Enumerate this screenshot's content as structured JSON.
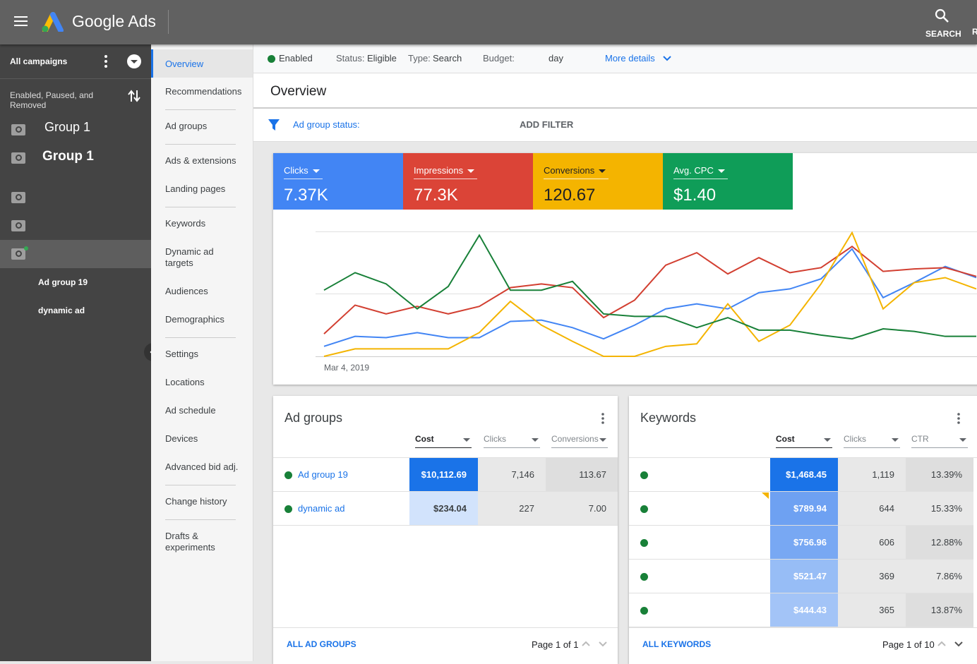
{
  "header": {
    "product": "Google Ads",
    "search": "SEARCH",
    "right_cut": "R"
  },
  "sidebar": {
    "scope": "All campaigns",
    "filter": "Enabled, Paused, and Removed",
    "campaigns": [
      "Group 1",
      "Group 1"
    ],
    "ad_groups": [
      "Ad group 19",
      "dynamic ad"
    ]
  },
  "nav": {
    "items": [
      "Overview",
      "Recommendations",
      "Ad groups",
      "Ads & extensions",
      "Landing pages",
      "Keywords",
      "Dynamic ad targets",
      "Audiences",
      "Demographics",
      "Settings",
      "Locations",
      "Ad schedule",
      "Devices",
      "Advanced bid adj.",
      "Change history",
      "Drafts & experiments"
    ]
  },
  "status_bar": {
    "state": "Enabled",
    "status_label": "Status:",
    "status": "Eligible",
    "type_label": "Type:",
    "type": "Search",
    "budget_label": "Budget:",
    "budget": "day",
    "more": "More details"
  },
  "page_title": "Overview",
  "filter": {
    "label": "Ad group status:",
    "action": "ADD FILTER"
  },
  "metrics": [
    {
      "name": "Clicks",
      "value": "7.37K",
      "color": "#4285f4"
    },
    {
      "name": "Impressions",
      "value": "77.3K",
      "color": "#db4437"
    },
    {
      "name": "Conversions",
      "value": "120.67",
      "color": "#f4b400"
    },
    {
      "name": "Avg. CPC",
      "value": "$1.40",
      "color": "#0f9d58"
    }
  ],
  "chart_data": {
    "type": "line",
    "categories": [
      "Mar 4, 2019",
      null,
      null,
      null,
      null,
      null,
      null,
      null,
      null,
      null,
      null,
      null,
      null,
      null,
      null,
      null,
      null,
      null,
      null,
      null,
      null,
      null
    ],
    "ylim": [
      0,
      100
    ],
    "series": [
      {
        "color": "#4285f4",
        "values": [
          8,
          16,
          15,
          19,
          15,
          15,
          28,
          29,
          23,
          14,
          25,
          38,
          42,
          38,
          51,
          54,
          62,
          86,
          47,
          59,
          72,
          63
        ]
      },
      {
        "color": "#d23f31",
        "values": [
          18,
          41,
          34,
          40,
          34,
          40,
          55,
          58,
          55,
          31,
          45,
          73,
          83,
          66,
          79,
          67,
          71,
          88,
          68,
          70,
          71,
          64
        ]
      },
      {
        "color": "#f4b400",
        "values": [
          0,
          6,
          6,
          6,
          6,
          19,
          44,
          25,
          12,
          0,
          0,
          8,
          10,
          42,
          12,
          25,
          58,
          99,
          38,
          59,
          63,
          54
        ]
      },
      {
        "color": "#188038",
        "values": [
          53,
          67,
          58,
          38,
          56,
          97,
          53,
          53,
          60,
          34,
          32,
          32,
          23,
          31,
          21,
          21,
          17,
          14,
          22,
          20,
          16,
          16
        ]
      }
    ]
  },
  "ad_groups_card": {
    "title": "Ad groups",
    "columns": [
      "Cost",
      "Clicks",
      "Conversions"
    ],
    "rows": [
      [
        "Ad group 19",
        "$10,112.69",
        "7,146",
        "113.67"
      ],
      [
        "dynamic ad",
        "$234.04",
        "227",
        "7.00"
      ]
    ],
    "cost_colors": [
      "#1a73e8",
      "#d2e3fc"
    ],
    "footer_link": "ALL AD GROUPS",
    "pagination": "Page 1 of 1"
  },
  "keywords_card": {
    "title": "Keywords",
    "columns": [
      "Cost",
      "Clicks",
      "CTR"
    ],
    "rows": [
      [
        "$1,468.45",
        "1,119",
        "13.39%"
      ],
      [
        "$789.94",
        "644",
        "15.33%"
      ],
      [
        "$756.96",
        "606",
        "12.88%"
      ],
      [
        "$521.47",
        "369",
        "7.86%"
      ],
      [
        "$444.43",
        "365",
        "13.87%"
      ]
    ],
    "cost_colors": [
      "#1a73e8",
      "#6ea1f2",
      "#78a8f3",
      "#97bdf6",
      "#a3c4f7"
    ],
    "footer_link": "ALL KEYWORDS",
    "pagination": "Page 1 of 10"
  }
}
